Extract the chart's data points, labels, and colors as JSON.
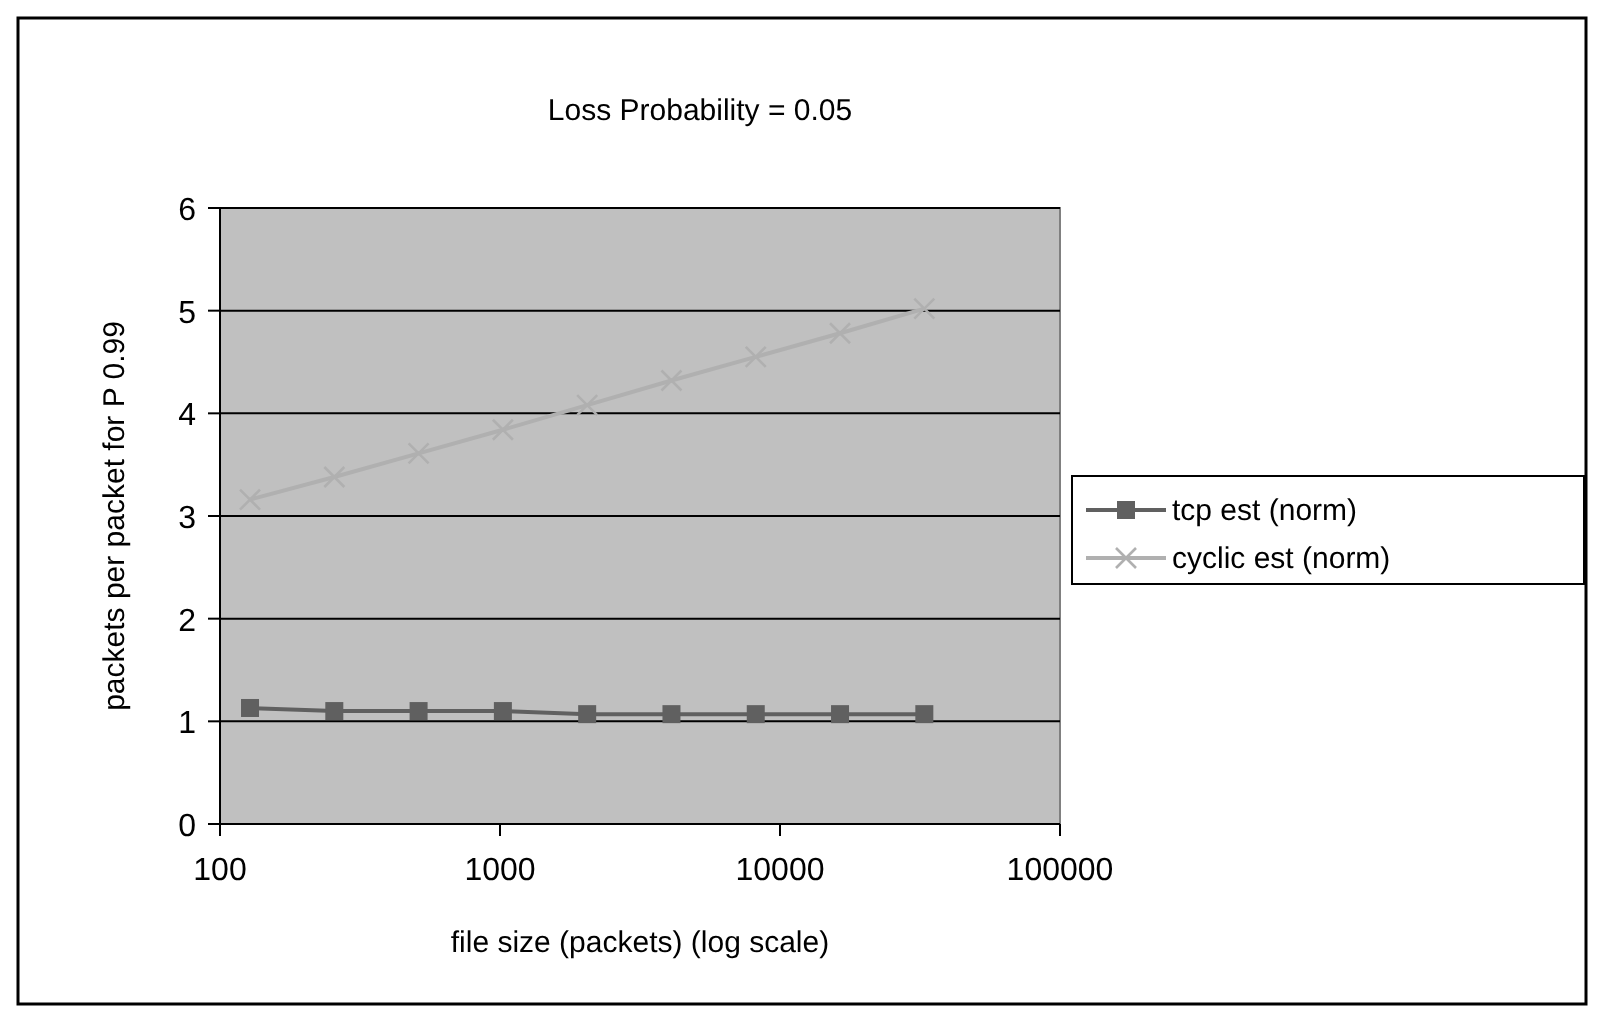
{
  "chart_data": {
    "type": "line",
    "title": "Loss Probability = 0.05",
    "xlabel": "file size (packets) (log scale)",
    "ylabel": "packets per packet for P  0.99",
    "x": [
      128,
      256,
      512,
      1024,
      2048,
      4096,
      8192,
      16384,
      32768
    ],
    "series": [
      {
        "name": "tcp est (norm)",
        "color": "#606060",
        "marker": "square",
        "values": [
          1.13,
          1.1,
          1.1,
          1.1,
          1.07,
          1.07,
          1.07,
          1.07,
          1.07
        ]
      },
      {
        "name": "cyclic est (norm)",
        "color": "#b0b0b0",
        "marker": "cross",
        "values": [
          3.16,
          3.38,
          3.61,
          3.84,
          4.08,
          4.32,
          4.55,
          4.78,
          5.02
        ]
      }
    ],
    "log": "x",
    "xlim": [
      100,
      100000
    ],
    "xticks": [
      100,
      1000,
      10000,
      100000
    ],
    "ylim": [
      0,
      6
    ],
    "yticks": [
      0,
      1,
      2,
      3,
      4,
      5,
      6
    ],
    "grid": "y",
    "legend": "right"
  }
}
